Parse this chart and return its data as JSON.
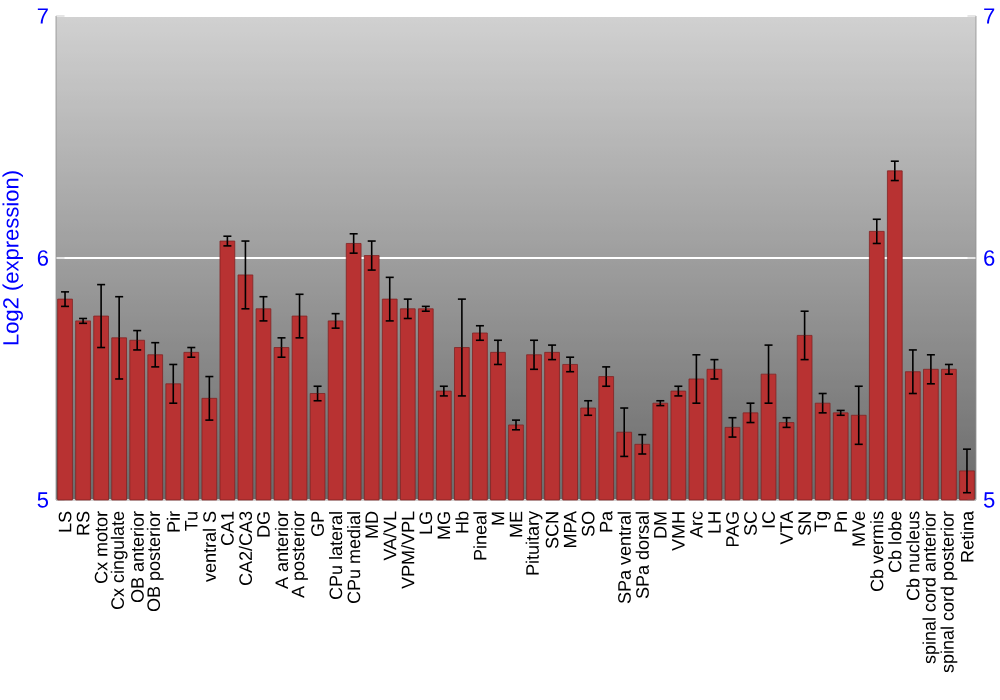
{
  "chart_data": {
    "type": "bar",
    "ylabel": "Log2 (expression)",
    "categories": [
      "LS",
      "RS",
      "Cx motor",
      "Cx cingulate",
      "OB anterior",
      "OB posterior",
      "Pir",
      "Tu",
      "ventral S",
      "CA1",
      "CA2/CA3",
      "DG",
      "A anterior",
      "A posterior",
      "GP",
      "CPu lateral",
      "CPu medial",
      "MD",
      "VA/VL",
      "VPM/VPL",
      "LG",
      "MG",
      "Hb",
      "Pineal",
      "M",
      "ME",
      "Pituitary",
      "SCN",
      "MPA",
      "SO",
      "Pa",
      "SPa ventral",
      "SPa dorsal",
      "DM",
      "VMH",
      "Arc",
      "LH",
      "PAG",
      "SC",
      "IC",
      "VTA",
      "SN",
      "Tg",
      "Pn",
      "MVe",
      "Cb vermis",
      "Cb lobe",
      "Cb nucleus",
      "spinal cord anterior",
      "spinal cord posterior",
      "Retina"
    ],
    "values": [
      5.83,
      5.74,
      5.76,
      5.67,
      5.66,
      5.6,
      5.48,
      5.61,
      5.42,
      6.07,
      5.93,
      5.79,
      5.63,
      5.76,
      5.44,
      5.74,
      6.06,
      6.01,
      5.83,
      5.79,
      5.79,
      5.45,
      5.63,
      5.69,
      5.61,
      5.31,
      5.6,
      5.61,
      5.56,
      5.38,
      5.51,
      5.28,
      5.23,
      5.4,
      5.45,
      5.5,
      5.54,
      5.3,
      5.36,
      5.52,
      5.32,
      5.68,
      5.4,
      5.36,
      5.35,
      6.11,
      6.36,
      5.53,
      5.54,
      5.54,
      5.12
    ],
    "errors": [
      0.03,
      0.01,
      0.13,
      0.17,
      0.04,
      0.05,
      0.08,
      0.02,
      0.09,
      0.02,
      0.14,
      0.05,
      0.04,
      0.09,
      0.03,
      0.03,
      0.04,
      0.06,
      0.09,
      0.04,
      0.01,
      0.02,
      0.2,
      0.03,
      0.05,
      0.02,
      0.06,
      0.03,
      0.03,
      0.03,
      0.04,
      0.1,
      0.04,
      0.01,
      0.02,
      0.1,
      0.04,
      0.04,
      0.04,
      0.12,
      0.02,
      0.1,
      0.04,
      0.01,
      0.12,
      0.05,
      0.04,
      0.09,
      0.06,
      0.02,
      0.09
    ],
    "color": "#b83232",
    "ylim": [
      5,
      7
    ],
    "yticks": [
      5,
      6,
      7
    ],
    "y2lim": [
      5,
      7
    ],
    "y2ticks": [
      5,
      6,
      7
    ],
    "grid": "y"
  }
}
